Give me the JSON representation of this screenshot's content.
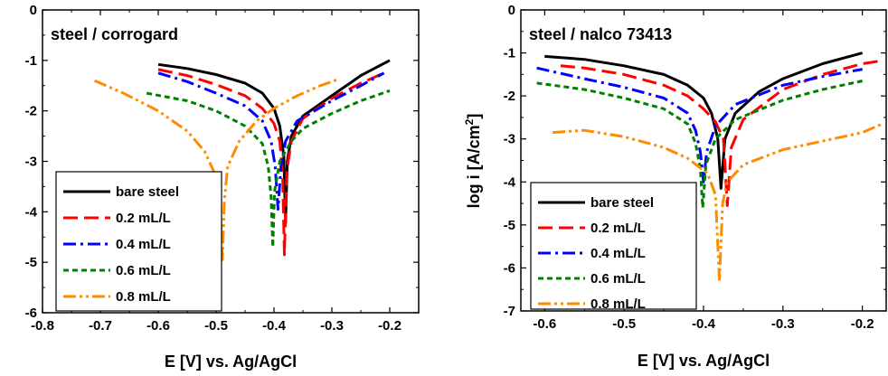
{
  "chart_data": [
    {
      "type": "line",
      "title": "steel / corrogard",
      "xlabel": "E [V] vs. Ag/AgCl",
      "ylabel": "",
      "xlim": [
        -0.8,
        -0.15
      ],
      "ylim": [
        -6,
        0
      ],
      "xticks": [
        -0.8,
        -0.7,
        -0.6,
        -0.5,
        -0.4,
        -0.3,
        -0.2
      ],
      "xtick_labels": [
        "-0.8",
        "-0.7",
        "-0.6",
        "-0.5",
        "-0.4",
        "-0.3",
        "-0.2"
      ],
      "yticks": [
        0,
        -1,
        -2,
        -3,
        -4,
        -5,
        -6
      ],
      "ytick_labels": [
        "0",
        "-1",
        "-2",
        "-3",
        "-4",
        "-5",
        "-6"
      ],
      "legend_position": "bottom-left",
      "series": [
        {
          "name": "bare steel",
          "color": "#000000",
          "dash": "solid",
          "points": [
            [
              -0.6,
              -1.08
            ],
            [
              -0.55,
              -1.16
            ],
            [
              -0.5,
              -1.28
            ],
            [
              -0.45,
              -1.45
            ],
            [
              -0.42,
              -1.65
            ],
            [
              -0.4,
              -1.95
            ],
            [
              -0.39,
              -2.3
            ],
            [
              -0.383,
              -2.9
            ],
            [
              -0.38,
              -4.22
            ],
            [
              -0.377,
              -3.0
            ],
            [
              -0.37,
              -2.5
            ],
            [
              -0.35,
              -2.1
            ],
            [
              -0.3,
              -1.7
            ],
            [
              -0.25,
              -1.3
            ],
            [
              -0.2,
              -1.0
            ]
          ]
        },
        {
          "name": "0.2 mL/L",
          "color": "#ff0000",
          "dash": "long",
          "points": [
            [
              -0.6,
              -1.18
            ],
            [
              -0.55,
              -1.3
            ],
            [
              -0.5,
              -1.48
            ],
            [
              -0.45,
              -1.7
            ],
            [
              -0.42,
              -1.95
            ],
            [
              -0.4,
              -2.25
            ],
            [
              -0.39,
              -2.6
            ],
            [
              -0.385,
              -3.3
            ],
            [
              -0.382,
              -4.85
            ],
            [
              -0.378,
              -3.2
            ],
            [
              -0.37,
              -2.6
            ],
            [
              -0.35,
              -2.15
            ],
            [
              -0.3,
              -1.75
            ],
            [
              -0.25,
              -1.45
            ],
            [
              -0.21,
              -1.25
            ]
          ]
        },
        {
          "name": "0.4 mL/L",
          "color": "#0000ff",
          "dash": "dashdot",
          "points": [
            [
              -0.6,
              -1.25
            ],
            [
              -0.55,
              -1.42
            ],
            [
              -0.5,
              -1.65
            ],
            [
              -0.45,
              -1.9
            ],
            [
              -0.42,
              -2.2
            ],
            [
              -0.405,
              -2.6
            ],
            [
              -0.398,
              -3.1
            ],
            [
              -0.393,
              -3.95
            ],
            [
              -0.388,
              -3.1
            ],
            [
              -0.38,
              -2.6
            ],
            [
              -0.36,
              -2.2
            ],
            [
              -0.3,
              -1.8
            ],
            [
              -0.25,
              -1.5
            ],
            [
              -0.21,
              -1.25
            ]
          ]
        },
        {
          "name": "0.6 mL/L",
          "color": "#008000",
          "dash": "short",
          "points": [
            [
              -0.62,
              -1.65
            ],
            [
              -0.55,
              -1.8
            ],
            [
              -0.5,
              -2.0
            ],
            [
              -0.45,
              -2.3
            ],
            [
              -0.42,
              -2.65
            ],
            [
              -0.41,
              -3.1
            ],
            [
              -0.405,
              -3.7
            ],
            [
              -0.402,
              -4.7
            ],
            [
              -0.399,
              -3.6
            ],
            [
              -0.39,
              -3.0
            ],
            [
              -0.37,
              -2.6
            ],
            [
              -0.35,
              -2.35
            ],
            [
              -0.3,
              -2.05
            ],
            [
              -0.25,
              -1.8
            ],
            [
              -0.2,
              -1.6
            ]
          ]
        },
        {
          "name": "0.8 mL/L",
          "color": "#ff8c00",
          "dash": "dashdotdot",
          "points": [
            [
              -0.71,
              -1.4
            ],
            [
              -0.66,
              -1.65
            ],
            [
              -0.6,
              -2.0
            ],
            [
              -0.55,
              -2.4
            ],
            [
              -0.52,
              -2.8
            ],
            [
              -0.5,
              -3.3
            ],
            [
              -0.493,
              -3.9
            ],
            [
              -0.489,
              -4.95
            ],
            [
              -0.486,
              -3.8
            ],
            [
              -0.48,
              -3.1
            ],
            [
              -0.46,
              -2.6
            ],
            [
              -0.43,
              -2.2
            ],
            [
              -0.4,
              -1.95
            ],
            [
              -0.36,
              -1.7
            ],
            [
              -0.32,
              -1.5
            ],
            [
              -0.29,
              -1.38
            ]
          ]
        }
      ]
    },
    {
      "type": "line",
      "title": "steel / nalco 73413",
      "xlabel": "E [V] vs. Ag/AgCl",
      "ylabel": "log i [A/cm²]",
      "ylabel_main": "log i [A/cm",
      "ylabel_sup": "2",
      "ylabel_end": "]",
      "xlim": [
        -0.63,
        -0.17
      ],
      "ylim": [
        -7,
        0
      ],
      "xticks": [
        -0.6,
        -0.5,
        -0.4,
        -0.3,
        -0.2
      ],
      "xtick_labels": [
        "-0.6",
        "-0.5",
        "-0.4",
        "-0.3",
        "-0.2"
      ],
      "yticks": [
        0,
        -1,
        -2,
        -3,
        -4,
        -5,
        -6,
        -7
      ],
      "ytick_labels": [
        "0",
        "-1",
        "-2",
        "-3",
        "-4",
        "-5",
        "-6",
        "-7"
      ],
      "legend_position": "bottom-left",
      "series": [
        {
          "name": "bare steel",
          "color": "#000000",
          "dash": "solid",
          "points": [
            [
              -0.6,
              -1.08
            ],
            [
              -0.55,
              -1.15
            ],
            [
              -0.5,
              -1.3
            ],
            [
              -0.45,
              -1.5
            ],
            [
              -0.42,
              -1.75
            ],
            [
              -0.4,
              -2.05
            ],
            [
              -0.39,
              -2.4
            ],
            [
              -0.382,
              -3.0
            ],
            [
              -0.378,
              -4.15
            ],
            [
              -0.373,
              -3.0
            ],
            [
              -0.36,
              -2.4
            ],
            [
              -0.33,
              -1.9
            ],
            [
              -0.3,
              -1.6
            ],
            [
              -0.25,
              -1.25
            ],
            [
              -0.2,
              -1.0
            ]
          ]
        },
        {
          "name": "0.2 mL/L",
          "color": "#ff0000",
          "dash": "long",
          "points": [
            [
              -0.58,
              -1.3
            ],
            [
              -0.55,
              -1.35
            ],
            [
              -0.5,
              -1.5
            ],
            [
              -0.45,
              -1.75
            ],
            [
              -0.42,
              -2.0
            ],
            [
              -0.4,
              -2.3
            ],
            [
              -0.385,
              -2.6
            ],
            [
              -0.375,
              -3.0
            ],
            [
              -0.37,
              -4.55
            ],
            [
              -0.365,
              -3.2
            ],
            [
              -0.35,
              -2.55
            ],
            [
              -0.3,
              -1.85
            ],
            [
              -0.25,
              -1.5
            ],
            [
              -0.2,
              -1.25
            ],
            [
              -0.175,
              -1.18
            ]
          ]
        },
        {
          "name": "0.4 mL/L",
          "color": "#0000ff",
          "dash": "dashdot",
          "points": [
            [
              -0.61,
              -1.35
            ],
            [
              -0.55,
              -1.6
            ],
            [
              -0.5,
              -1.8
            ],
            [
              -0.45,
              -2.05
            ],
            [
              -0.42,
              -2.4
            ],
            [
              -0.41,
              -2.8
            ],
            [
              -0.404,
              -3.3
            ],
            [
              -0.4,
              -4.0
            ],
            [
              -0.396,
              -3.3
            ],
            [
              -0.385,
              -2.7
            ],
            [
              -0.36,
              -2.2
            ],
            [
              -0.3,
              -1.75
            ],
            [
              -0.25,
              -1.55
            ],
            [
              -0.2,
              -1.38
            ]
          ]
        },
        {
          "name": "0.6 mL/L",
          "color": "#008000",
          "dash": "short",
          "points": [
            [
              -0.61,
              -1.7
            ],
            [
              -0.55,
              -1.85
            ],
            [
              -0.5,
              -2.05
            ],
            [
              -0.45,
              -2.3
            ],
            [
              -0.42,
              -2.65
            ],
            [
              -0.41,
              -3.1
            ],
            [
              -0.404,
              -3.7
            ],
            [
              -0.401,
              -4.6
            ],
            [
              -0.397,
              -3.6
            ],
            [
              -0.385,
              -3.0
            ],
            [
              -0.36,
              -2.55
            ],
            [
              -0.3,
              -2.1
            ],
            [
              -0.25,
              -1.85
            ],
            [
              -0.2,
              -1.65
            ]
          ]
        },
        {
          "name": "0.8 mL/L",
          "color": "#ff8c00",
          "dash": "dashdotdot",
          "points": [
            [
              -0.59,
              -2.85
            ],
            [
              -0.55,
              -2.8
            ],
            [
              -0.5,
              -2.95
            ],
            [
              -0.45,
              -3.2
            ],
            [
              -0.42,
              -3.45
            ],
            [
              -0.395,
              -3.8
            ],
            [
              -0.385,
              -4.3
            ],
            [
              -0.38,
              -6.3
            ],
            [
              -0.376,
              -4.5
            ],
            [
              -0.37,
              -4.0
            ],
            [
              -0.35,
              -3.6
            ],
            [
              -0.3,
              -3.25
            ],
            [
              -0.25,
              -3.05
            ],
            [
              -0.2,
              -2.85
            ],
            [
              -0.175,
              -2.65
            ]
          ]
        }
      ]
    }
  ]
}
